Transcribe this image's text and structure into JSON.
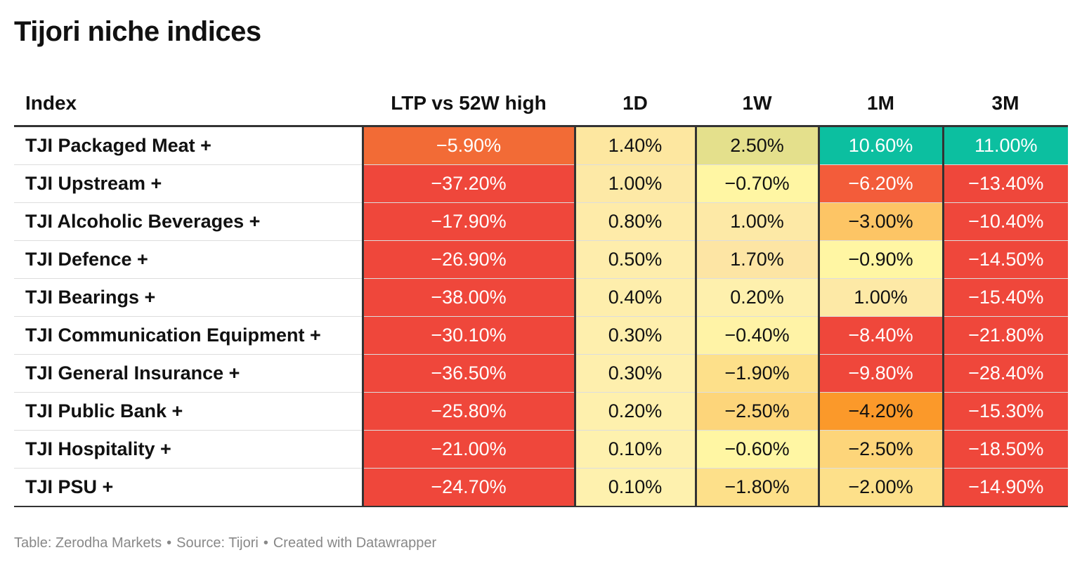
{
  "title": "Tijori niche indices",
  "chart_data": {
    "type": "table",
    "columns": [
      "Index",
      "LTP vs 52W high",
      "1D",
      "1W",
      "1M",
      "3M"
    ],
    "rows": [
      {
        "name": "TJI Packaged Meat +",
        "values": [
          "−5.90%",
          "1.40%",
          "2.50%",
          "10.60%",
          "11.00%"
        ],
        "colors": [
          "#f26b36",
          "#fde7a0",
          "#e4e08c",
          "#0cbfa0",
          "#0cbfa0"
        ],
        "text_colors": [
          "#ffffff",
          "#111111",
          "#111111",
          "#ffffff",
          "#ffffff"
        ]
      },
      {
        "name": "TJI Upstream +",
        "values": [
          "−37.20%",
          "1.00%",
          "−0.70%",
          "−6.20%",
          "−13.40%"
        ],
        "colors": [
          "#ef473b",
          "#fde9a6",
          "#fff6a3",
          "#f35c3a",
          "#ef473b"
        ],
        "text_colors": [
          "#ffffff",
          "#111111",
          "#111111",
          "#ffffff",
          "#ffffff"
        ]
      },
      {
        "name": "TJI Alcoholic Beverages +",
        "values": [
          "−17.90%",
          "0.80%",
          "1.00%",
          "−3.00%",
          "−10.40%"
        ],
        "colors": [
          "#ef473b",
          "#feeba9",
          "#fde9a6",
          "#fdc565",
          "#ef473b"
        ],
        "text_colors": [
          "#ffffff",
          "#111111",
          "#111111",
          "#111111",
          "#ffffff"
        ]
      },
      {
        "name": "TJI Defence +",
        "values": [
          "−26.90%",
          "0.50%",
          "1.70%",
          "−0.90%",
          "−14.50%"
        ],
        "colors": [
          "#ef473b",
          "#feedac",
          "#fde5a4",
          "#fff6a3",
          "#ef473b"
        ],
        "text_colors": [
          "#ffffff",
          "#111111",
          "#111111",
          "#111111",
          "#ffffff"
        ]
      },
      {
        "name": "TJI Bearings +",
        "values": [
          "−38.00%",
          "0.40%",
          "0.20%",
          "1.00%",
          "−15.40%"
        ],
        "colors": [
          "#ef473b",
          "#feeeac",
          "#fef0ad",
          "#fde9a6",
          "#ef473b"
        ],
        "text_colors": [
          "#ffffff",
          "#111111",
          "#111111",
          "#111111",
          "#ffffff"
        ]
      },
      {
        "name": "TJI Communication Equipment +",
        "values": [
          "−30.10%",
          "0.30%",
          "−0.40%",
          "−8.40%",
          "−21.80%"
        ],
        "colors": [
          "#ef473b",
          "#feefad",
          "#fff3a6",
          "#ef473b",
          "#ef473b"
        ],
        "text_colors": [
          "#ffffff",
          "#111111",
          "#111111",
          "#ffffff",
          "#ffffff"
        ]
      },
      {
        "name": "TJI General Insurance +",
        "values": [
          "−36.50%",
          "0.30%",
          "−1.90%",
          "−9.80%",
          "−28.40%"
        ],
        "colors": [
          "#ef473b",
          "#feefad",
          "#fde08a",
          "#ef473b",
          "#ef473b"
        ],
        "text_colors": [
          "#ffffff",
          "#111111",
          "#111111",
          "#ffffff",
          "#ffffff"
        ]
      },
      {
        "name": "TJI Public Bank +",
        "values": [
          "−25.80%",
          "0.20%",
          "−2.50%",
          "−4.20%",
          "−15.30%"
        ],
        "colors": [
          "#ef473b",
          "#fef0ad",
          "#fdd57a",
          "#fb992a",
          "#ef473b"
        ],
        "text_colors": [
          "#ffffff",
          "#111111",
          "#111111",
          "#111111",
          "#ffffff"
        ]
      },
      {
        "name": "TJI Hospitality +",
        "values": [
          "−21.00%",
          "0.10%",
          "−0.60%",
          "−2.50%",
          "−18.50%"
        ],
        "colors": [
          "#ef473b",
          "#fef1ae",
          "#fff6a3",
          "#fdd57a",
          "#ef473b"
        ],
        "text_colors": [
          "#ffffff",
          "#111111",
          "#111111",
          "#111111",
          "#ffffff"
        ]
      },
      {
        "name": "TJI PSU +",
        "values": [
          "−24.70%",
          "0.10%",
          "−1.80%",
          "−2.00%",
          "−14.90%"
        ],
        "colors": [
          "#ef473b",
          "#fef1ae",
          "#fde08a",
          "#fde08a",
          "#ef473b"
        ],
        "text_colors": [
          "#ffffff",
          "#111111",
          "#111111",
          "#111111",
          "#ffffff"
        ]
      }
    ]
  },
  "footer": {
    "table_credit": "Table: Zerodha Markets",
    "source": "Source: Tijori",
    "created_with": "Created with Datawrapper"
  }
}
